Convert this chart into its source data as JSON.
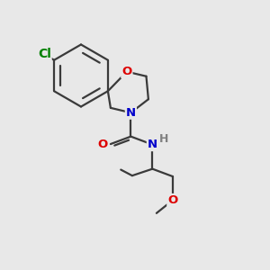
{
  "bg_color": "#e8e8e8",
  "bond_color": "#3a3a3a",
  "atom_colors": {
    "Cl": "#008000",
    "O": "#dd0000",
    "N": "#0000cc",
    "H": "#808080",
    "C": "#3a3a3a"
  },
  "line_width": 1.6,
  "font_size": 9.5,
  "figsize": [
    3.0,
    3.0
  ],
  "dpi": 100,
  "bg_color_light": "#e8e8e8"
}
